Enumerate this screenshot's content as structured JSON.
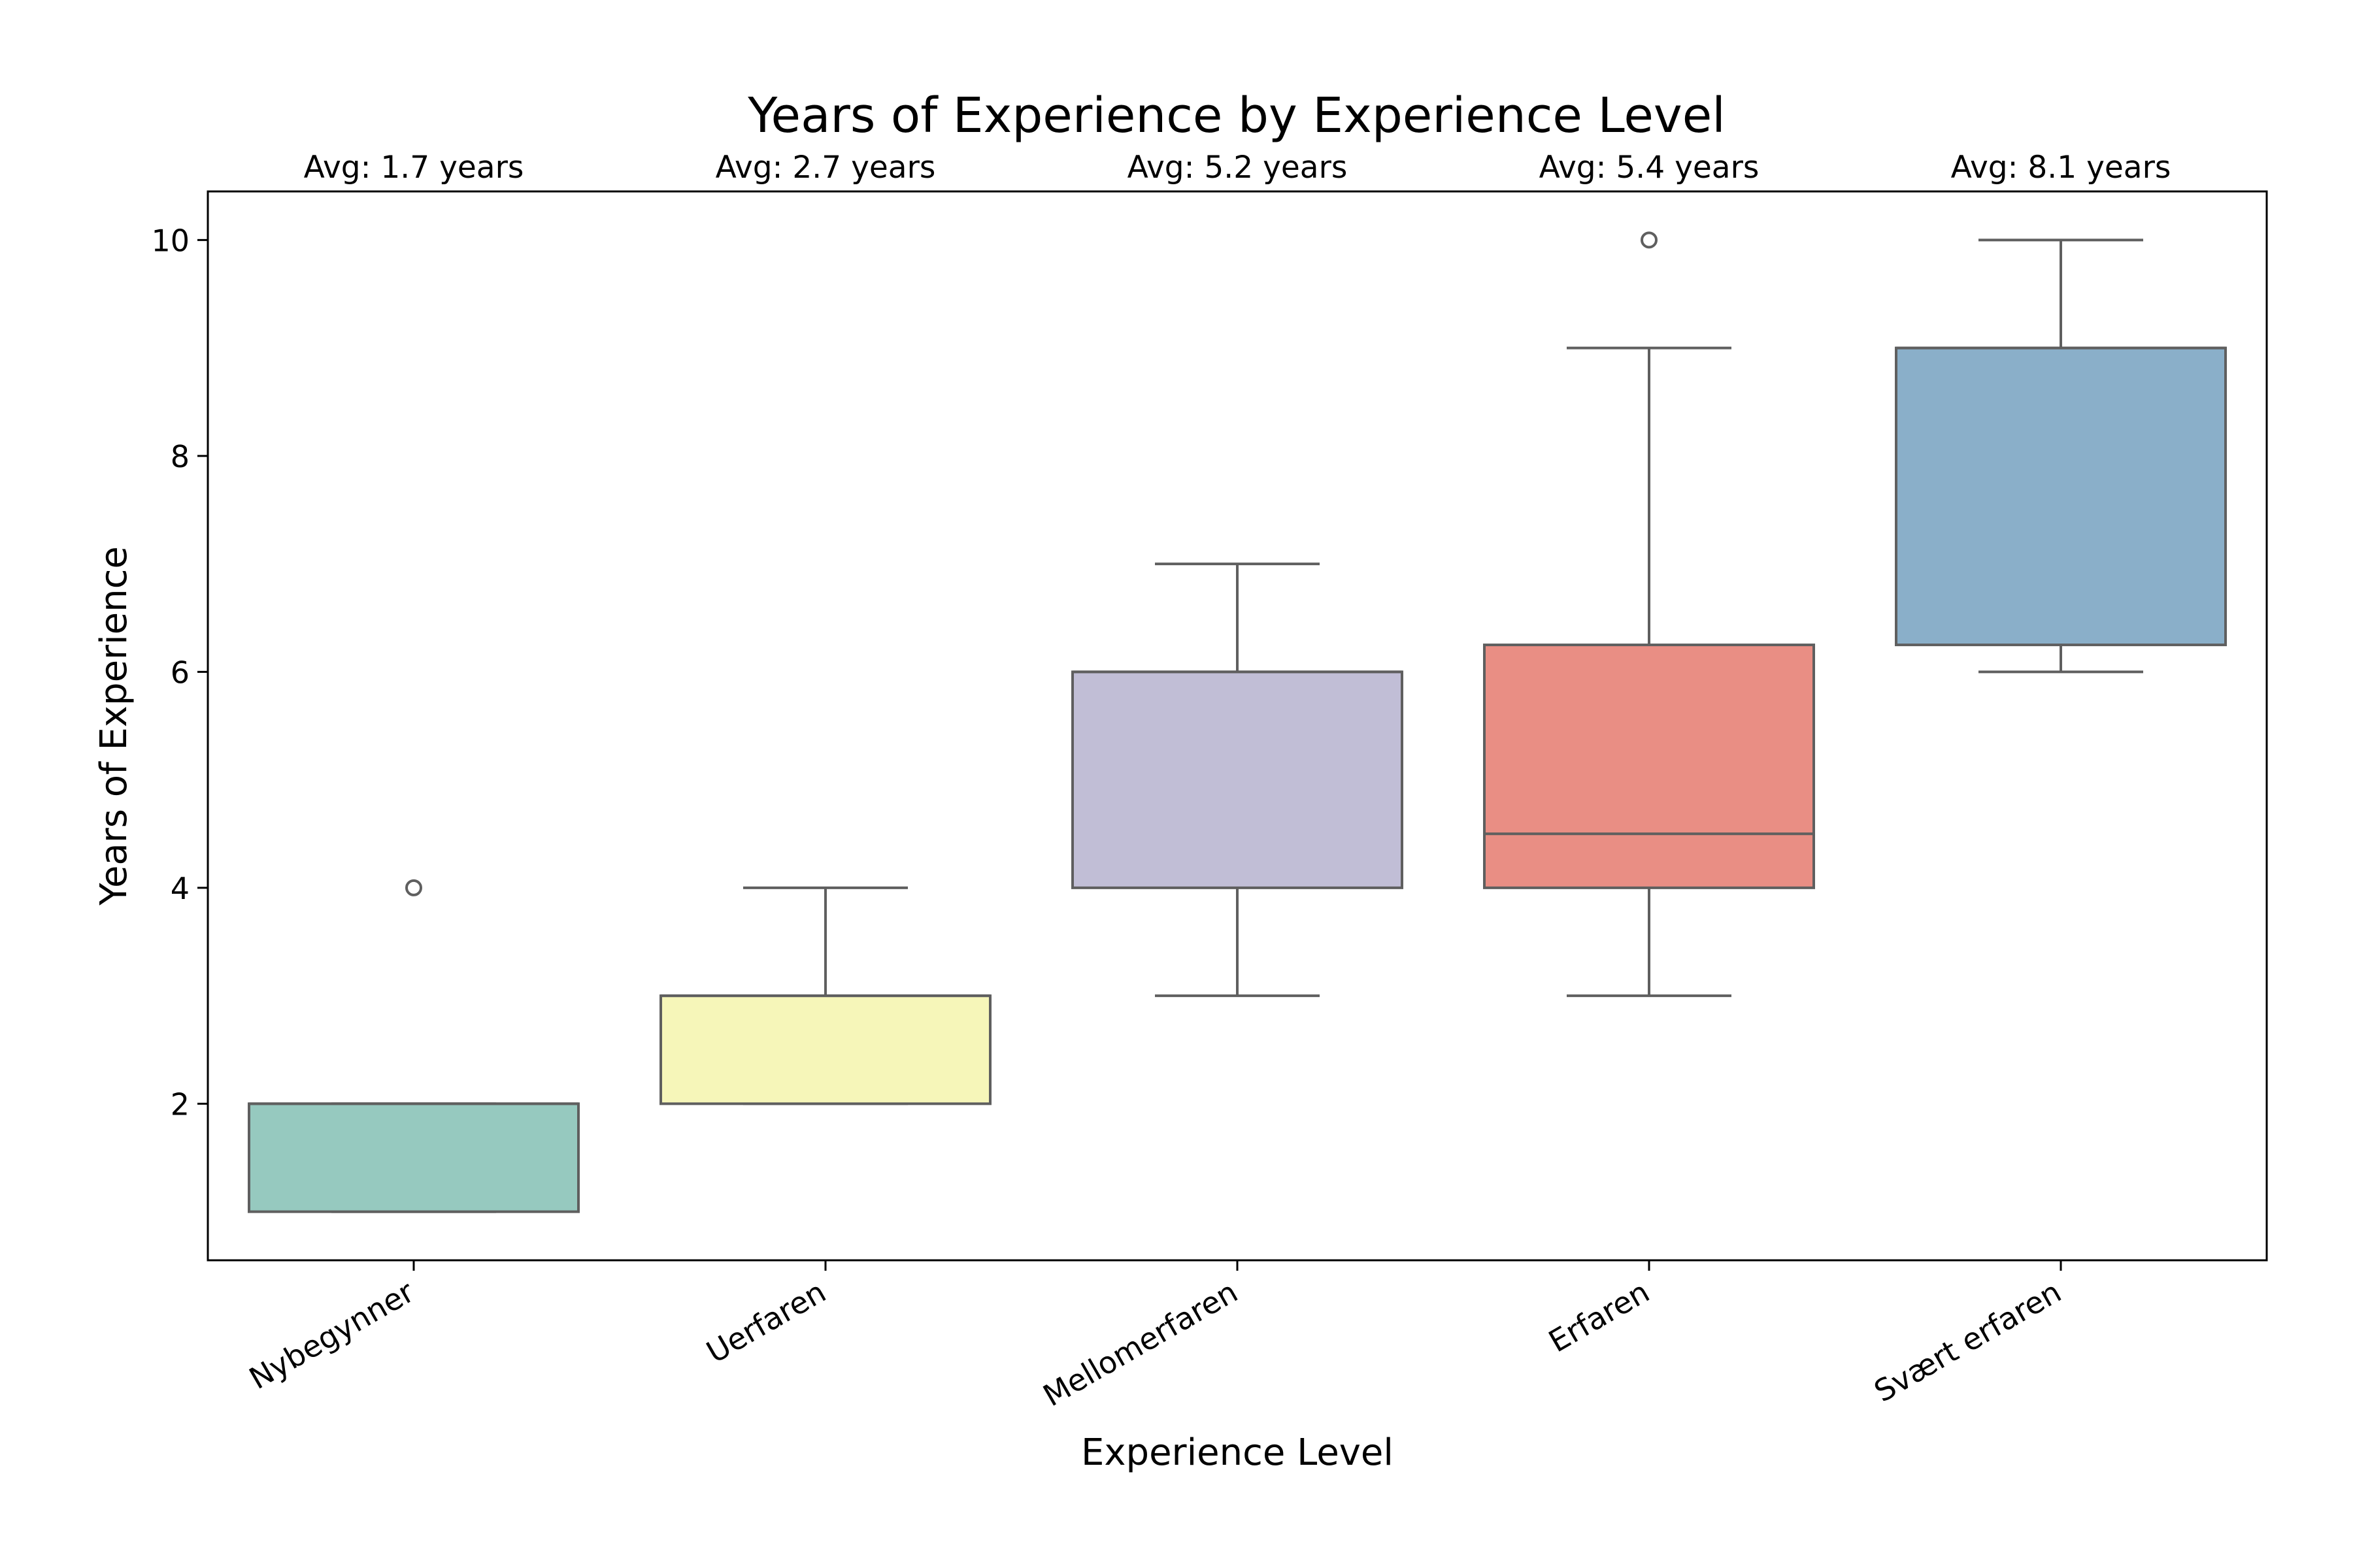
{
  "chart_data": {
    "type": "box",
    "title": "Years of Experience by Experience Level",
    "xlabel": "Experience Level",
    "ylabel": "Years of Experience",
    "ylim": [
      0.55,
      10.45
    ],
    "yticks": [
      2,
      4,
      6,
      8,
      10
    ],
    "categories": [
      "Nybegynner",
      "Uerfaren",
      "Mellomerfaren",
      "Erfaren",
      "Svært erfaren"
    ],
    "averages": [
      "Avg: 1.7 years",
      "Avg: 2.7 years",
      "Avg: 5.2 years",
      "Avg: 5.4 years",
      "Avg: 8.1 years"
    ],
    "boxes": [
      {
        "category": "Nybegynner",
        "whisker_low": 1,
        "q1": 1,
        "median": 2,
        "q3": 2,
        "whisker_high": 2,
        "outliers": [
          4
        ],
        "color": "#96c9bf"
      },
      {
        "category": "Uerfaren",
        "whisker_low": 2,
        "q1": 2,
        "median": 3,
        "q3": 3,
        "whisker_high": 4,
        "outliers": [],
        "color": "#f6f6b9"
      },
      {
        "category": "Mellomerfaren",
        "whisker_low": 3,
        "q1": 4,
        "median": 6,
        "q3": 6,
        "whisker_high": 7,
        "outliers": [],
        "color": "#c1bed6"
      },
      {
        "category": "Erfaren",
        "whisker_low": 3,
        "q1": 4,
        "median": 4.5,
        "q3": 6.25,
        "whisker_high": 9,
        "outliers": [
          10
        ],
        "color": "#e98e84"
      },
      {
        "category": "Svært erfaren",
        "whisker_low": 6,
        "q1": 6.25,
        "median": 9,
        "q3": 9,
        "whisker_high": 10,
        "outliers": [],
        "color": "#8aafc9"
      }
    ]
  }
}
